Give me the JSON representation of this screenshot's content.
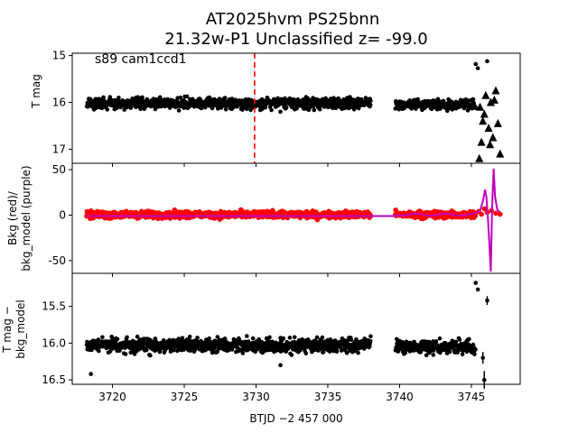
{
  "figure": {
    "title_line1": "AT2025hvm  PS25bnn",
    "title_line2": "21.32w-P1 Unclassified z= -99.0",
    "annotation": "s89 cam1ccd1",
    "xlabel": "BTJD −2 457 000",
    "colors": {
      "points": "#000000",
      "background": "#ff0000",
      "bkg_model": "#bf00bf",
      "marker_line": "#ff0000"
    }
  },
  "chart_data": [
    {
      "type": "scatter",
      "name": "panel-1",
      "ylabel": "T mag",
      "xlim": [
        3717.2,
        3748.4
      ],
      "ylim": [
        17.3,
        14.95
      ],
      "inverted_y": true,
      "xticks": [
        3720,
        3725,
        3730,
        3735,
        3740,
        3745
      ],
      "yticks": [
        15,
        16,
        17
      ],
      "vline_x": 3729.9,
      "segments": [
        {
          "x_start": 3718.2,
          "x_end": 3738.0,
          "center": 16.02,
          "spread": 0.13
        },
        {
          "x_start": 3739.7,
          "x_end": 3745.3,
          "center": 16.05,
          "spread": 0.13
        }
      ],
      "outliers": [
        {
          "x": 3731.7,
          "y": 16.2
        },
        {
          "x": 3745.3,
          "y": 15.18
        },
        {
          "x": 3745.45,
          "y": 15.27
        },
        {
          "x": 3746.1,
          "y": 15.12
        }
      ],
      "triangles": [
        {
          "x": 3745.6,
          "y": 16.1
        },
        {
          "x": 3745.8,
          "y": 16.4
        },
        {
          "x": 3746.0,
          "y": 15.85
        },
        {
          "x": 3746.2,
          "y": 16.55
        },
        {
          "x": 3746.35,
          "y": 16.0
        },
        {
          "x": 3746.5,
          "y": 16.75
        },
        {
          "x": 3746.7,
          "y": 15.75
        },
        {
          "x": 3746.85,
          "y": 16.45
        },
        {
          "x": 3745.7,
          "y": 16.85
        },
        {
          "x": 3745.55,
          "y": 17.2
        },
        {
          "x": 3746.3,
          "y": 16.9
        },
        {
          "x": 3747.0,
          "y": 17.1
        },
        {
          "x": 3746.6,
          "y": 15.95
        },
        {
          "x": 3745.9,
          "y": 16.25
        }
      ]
    },
    {
      "type": "line",
      "name": "panel-2",
      "ylabel_line1": "Bkg (red)/",
      "ylabel_line2": "bkg_model (purple)",
      "xlim": [
        3717.2,
        3748.4
      ],
      "ylim": [
        -64,
        57
      ],
      "yticks": [
        -50,
        0,
        50
      ],
      "segments": [
        {
          "x_start": 3718.2,
          "x_end": 3738.0
        },
        {
          "x_start": 3739.7,
          "x_end": 3745.3
        }
      ],
      "bkg_tail": [
        {
          "x": 3745.3,
          "y": 2
        },
        {
          "x": 3745.5,
          "y": 4
        },
        {
          "x": 3745.7,
          "y": 1
        },
        {
          "x": 3745.9,
          "y": 7
        },
        {
          "x": 3746.1,
          "y": 3
        },
        {
          "x": 3746.4,
          "y": 5
        },
        {
          "x": 3746.7,
          "y": 2
        },
        {
          "x": 3747.0,
          "y": 1
        }
      ],
      "model_tail": [
        {
          "x": 3745.3,
          "y": 2
        },
        {
          "x": 3745.6,
          "y": 5
        },
        {
          "x": 3745.8,
          "y": 15
        },
        {
          "x": 3745.95,
          "y": 28
        },
        {
          "x": 3746.05,
          "y": 20
        },
        {
          "x": 3746.15,
          "y": -2
        },
        {
          "x": 3746.25,
          "y": -30
        },
        {
          "x": 3746.35,
          "y": -62
        },
        {
          "x": 3746.45,
          "y": 10
        },
        {
          "x": 3746.55,
          "y": 51
        },
        {
          "x": 3746.65,
          "y": 20
        },
        {
          "x": 3746.8,
          "y": 6
        },
        {
          "x": 3747.0,
          "y": 3
        }
      ]
    },
    {
      "type": "scatter",
      "name": "panel-3",
      "ylabel_line1": "T mag −",
      "ylabel_line2": "bkg_model",
      "xlim": [
        3717.2,
        3748.4
      ],
      "ylim": [
        16.56,
        15.05
      ],
      "inverted_y": true,
      "yticks": [
        15.5,
        16.0,
        16.5
      ],
      "segments": [
        {
          "x_start": 3718.2,
          "x_end": 3738.0,
          "center": 16.03,
          "spread": 0.11
        },
        {
          "x_start": 3739.7,
          "x_end": 3745.3,
          "center": 16.05,
          "spread": 0.11
        }
      ],
      "outliers": [
        {
          "x": 3718.5,
          "y": 16.42
        },
        {
          "x": 3731.7,
          "y": 16.3
        },
        {
          "x": 3745.3,
          "y": 15.18
        },
        {
          "x": 3745.45,
          "y": 15.27
        }
      ],
      "errorbars": [
        {
          "x": 3745.9,
          "y": 16.5,
          "err": 0.12
        },
        {
          "x": 3746.1,
          "y": 15.42,
          "err": 0.06
        },
        {
          "x": 3745.8,
          "y": 16.2,
          "err": 0.08
        }
      ]
    }
  ]
}
